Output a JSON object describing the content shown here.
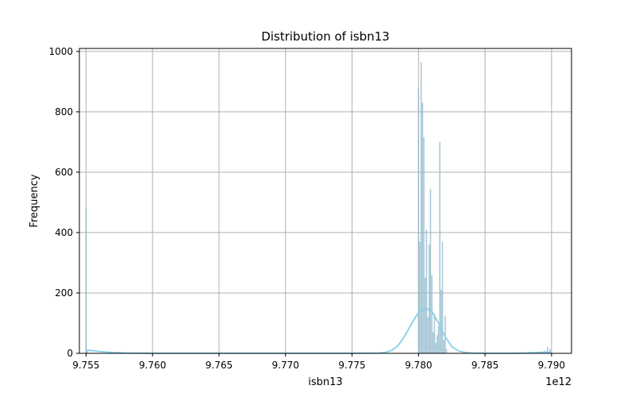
{
  "chart_data": {
    "type": "histogram",
    "title": "Distribution of isbn13",
    "xlabel": "isbn13",
    "ylabel": "Frequency",
    "x_offset_label": "1e12",
    "xlim": [
      9.7545,
      9.7915
    ],
    "ylim": [
      0,
      1010
    ],
    "x_ticks": [
      9.755,
      9.76,
      9.765,
      9.77,
      9.775,
      9.78,
      9.785,
      9.79
    ],
    "x_tick_labels": [
      "9.755",
      "9.760",
      "9.765",
      "9.770",
      "9.775",
      "9.780",
      "9.785",
      "9.790"
    ],
    "y_ticks": [
      0,
      200,
      400,
      600,
      800,
      1000
    ],
    "y_tick_labels": [
      "0",
      "200",
      "400",
      "600",
      "800",
      "1000"
    ],
    "grid": true,
    "bar_color": "#8fb7c9",
    "kde_color": "#87ceeb",
    "bars": [
      {
        "x": 9.755,
        "value": 485
      },
      {
        "x": 9.7551,
        "value": 12
      },
      {
        "x": 9.78,
        "value": 880
      },
      {
        "x": 9.7801,
        "value": 370
      },
      {
        "x": 9.7802,
        "value": 965
      },
      {
        "x": 9.7803,
        "value": 830
      },
      {
        "x": 9.7804,
        "value": 715
      },
      {
        "x": 9.7805,
        "value": 250
      },
      {
        "x": 9.7806,
        "value": 410
      },
      {
        "x": 9.7807,
        "value": 120
      },
      {
        "x": 9.7808,
        "value": 360
      },
      {
        "x": 9.7809,
        "value": 545
      },
      {
        "x": 9.781,
        "value": 260
      },
      {
        "x": 9.7811,
        "value": 70
      },
      {
        "x": 9.7812,
        "value": 130
      },
      {
        "x": 9.7813,
        "value": 35
      },
      {
        "x": 9.7814,
        "value": 60
      },
      {
        "x": 9.7815,
        "value": 90
      },
      {
        "x": 9.7816,
        "value": 700
      },
      {
        "x": 9.7817,
        "value": 210
      },
      {
        "x": 9.7818,
        "value": 370
      },
      {
        "x": 9.7819,
        "value": 45
      },
      {
        "x": 9.782,
        "value": 125
      },
      {
        "x": 9.7821,
        "value": 15
      },
      {
        "x": 9.7884,
        "value": 5
      },
      {
        "x": 9.7895,
        "value": 8
      },
      {
        "x": 9.7897,
        "value": 22
      },
      {
        "x": 9.7899,
        "value": 15
      }
    ],
    "kde": [
      [
        9.755,
        10
      ],
      [
        9.7555,
        9
      ],
      [
        9.756,
        6
      ],
      [
        9.757,
        3
      ],
      [
        9.758,
        1
      ],
      [
        9.76,
        0
      ],
      [
        9.765,
        0
      ],
      [
        9.77,
        0
      ],
      [
        9.775,
        0
      ],
      [
        9.777,
        1
      ],
      [
        9.7775,
        3
      ],
      [
        9.778,
        10
      ],
      [
        9.7785,
        28
      ],
      [
        9.779,
        60
      ],
      [
        9.7795,
        100
      ],
      [
        9.78,
        135
      ],
      [
        9.7805,
        150
      ],
      [
        9.781,
        140
      ],
      [
        9.7815,
        100
      ],
      [
        9.782,
        55
      ],
      [
        9.7825,
        22
      ],
      [
        9.783,
        8
      ],
      [
        9.7835,
        3
      ],
      [
        9.784,
        1
      ],
      [
        9.785,
        0
      ],
      [
        9.787,
        0
      ],
      [
        9.788,
        1
      ],
      [
        9.789,
        3
      ],
      [
        9.7895,
        4
      ],
      [
        9.79,
        4
      ]
    ]
  }
}
